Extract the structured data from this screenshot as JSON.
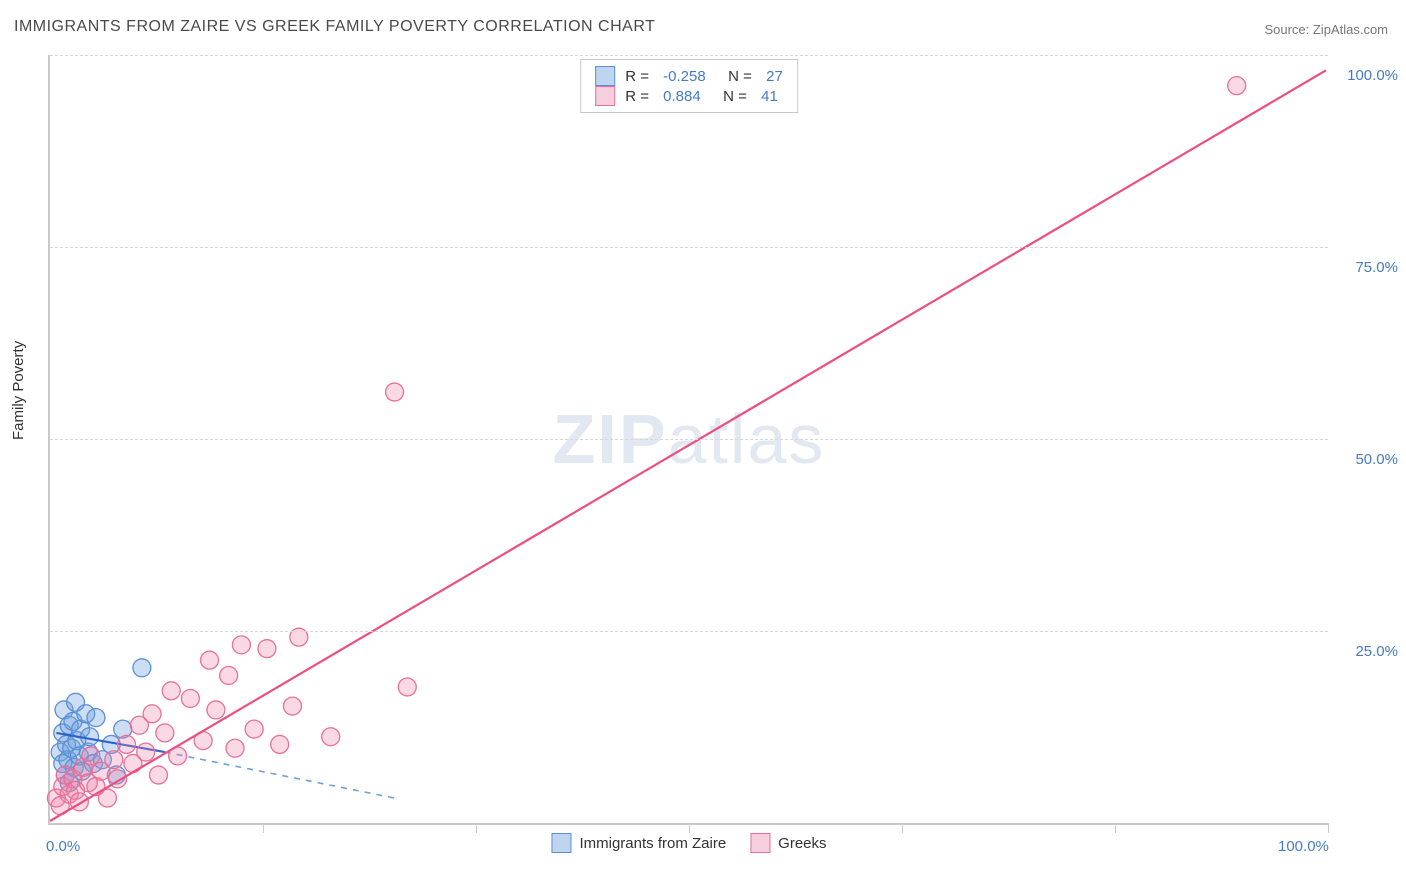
{
  "title": "IMMIGRANTS FROM ZAIRE VS GREEK FAMILY POVERTY CORRELATION CHART",
  "source_label": "Source: ZipAtlas.com",
  "ylabel": "Family Poverty",
  "watermark": {
    "bold": "ZIP",
    "light": "atlas"
  },
  "chart": {
    "type": "scatter",
    "background_color": "#ffffff",
    "axis_color": "#c9c9c9",
    "grid_color": "#d6d6d6",
    "grid_style": "dashed",
    "tick_label_color": "#467bc4",
    "tick_label_fontsize": 15,
    "xlim": [
      0,
      100
    ],
    "ylim": [
      0,
      100
    ],
    "x_ticks": [
      0,
      16.67,
      33.33,
      50,
      66.67,
      83.33,
      100
    ],
    "x_tick_labels": [
      "0.0%",
      "",
      "",
      "",
      "",
      "",
      "100.0%"
    ],
    "y_gridlines": [
      25,
      50,
      75,
      100
    ],
    "y_tick_labels": [
      "25.0%",
      "50.0%",
      "75.0%",
      "100.0%"
    ],
    "marker_radius": 9,
    "marker_stroke_width": 1.3,
    "line_width_solid": 2.2,
    "line_width_dash": 1.6,
    "series": [
      {
        "id": "zaire",
        "label": "Immigrants from Zaire",
        "fill": "rgba(110,160,220,0.35)",
        "stroke": "#5b8fd6",
        "swatch_fill": "#bed5ef",
        "swatch_border": "#5b8fd6",
        "R": "-0.258",
        "N": "27",
        "trend_solid": {
          "x1": 0.5,
          "y1": 11.5,
          "x2": 9,
          "y2": 9.0,
          "color": "#2e62c9"
        },
        "trend_dash": {
          "x1": 9,
          "y1": 9.0,
          "x2": 27,
          "y2": 3.0,
          "color": "#6fa0dc"
        },
        "points": [
          [
            0.8,
            9.0
          ],
          [
            1.0,
            7.5
          ],
          [
            1.0,
            11.5
          ],
          [
            1.1,
            14.5
          ],
          [
            1.2,
            6.0
          ],
          [
            1.3,
            10.0
          ],
          [
            1.4,
            8.0
          ],
          [
            1.5,
            12.5
          ],
          [
            1.5,
            5.0
          ],
          [
            1.7,
            9.5
          ],
          [
            1.8,
            13.0
          ],
          [
            1.9,
            7.0
          ],
          [
            2.0,
            15.5
          ],
          [
            2.1,
            10.5
          ],
          [
            2.3,
            8.5
          ],
          [
            2.4,
            12.0
          ],
          [
            2.5,
            6.5
          ],
          [
            2.8,
            14.0
          ],
          [
            3.0,
            9.0
          ],
          [
            3.1,
            11.0
          ],
          [
            3.4,
            7.5
          ],
          [
            3.6,
            13.5
          ],
          [
            4.1,
            8.0
          ],
          [
            4.8,
            10.0
          ],
          [
            5.2,
            6.0
          ],
          [
            5.7,
            12.0
          ],
          [
            7.2,
            20.0
          ]
        ]
      },
      {
        "id": "greeks",
        "label": "Greeks",
        "fill": "rgba(240,130,170,0.30)",
        "stroke": "#e86f9a",
        "swatch_fill": "#f6cedd",
        "swatch_border": "#e86f9a",
        "R": "0.884",
        "N": "41",
        "trend_solid": {
          "x1": 0,
          "y1": 0,
          "x2": 100,
          "y2": 98,
          "color": "#ec4d82"
        },
        "points": [
          [
            0.5,
            3.0
          ],
          [
            0.8,
            2.0
          ],
          [
            1.0,
            4.5
          ],
          [
            1.2,
            6.0
          ],
          [
            1.5,
            3.5
          ],
          [
            1.8,
            5.5
          ],
          [
            2.0,
            4.0
          ],
          [
            2.3,
            2.5
          ],
          [
            2.6,
            7.0
          ],
          [
            3.0,
            5.0
          ],
          [
            3.2,
            8.5
          ],
          [
            3.6,
            4.5
          ],
          [
            4.0,
            6.5
          ],
          [
            4.5,
            3.0
          ],
          [
            5.0,
            8.0
          ],
          [
            5.3,
            5.5
          ],
          [
            6.0,
            10.0
          ],
          [
            6.5,
            7.5
          ],
          [
            7.0,
            12.5
          ],
          [
            7.5,
            9.0
          ],
          [
            8.0,
            14.0
          ],
          [
            8.5,
            6.0
          ],
          [
            9.0,
            11.5
          ],
          [
            9.5,
            17.0
          ],
          [
            10.0,
            8.5
          ],
          [
            11.0,
            16.0
          ],
          [
            12.0,
            10.5
          ],
          [
            12.5,
            21.0
          ],
          [
            13.0,
            14.5
          ],
          [
            14.0,
            19.0
          ],
          [
            14.5,
            9.5
          ],
          [
            15.0,
            23.0
          ],
          [
            16.0,
            12.0
          ],
          [
            17.0,
            22.5
          ],
          [
            18.0,
            10.0
          ],
          [
            19.0,
            15.0
          ],
          [
            19.5,
            24.0
          ],
          [
            22.0,
            11.0
          ],
          [
            28.0,
            17.5
          ],
          [
            27.0,
            56.0
          ],
          [
            93.0,
            96.0
          ]
        ]
      }
    ],
    "legend_top": {
      "border_color": "#c9c9c9",
      "R_label": "R =",
      "N_label": "N ="
    },
    "legend_bottom_order": [
      "zaire",
      "greeks"
    ]
  }
}
